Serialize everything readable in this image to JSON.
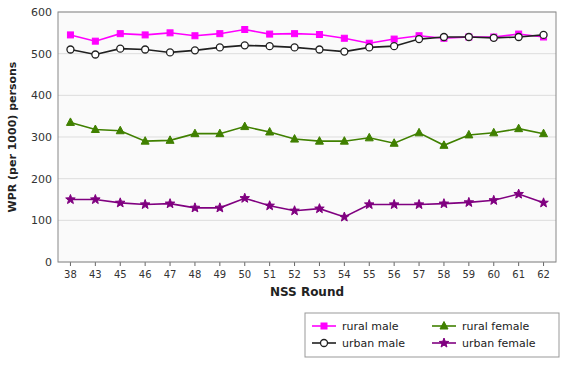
{
  "chart_data": {
    "type": "line",
    "xlabel": "NSS Round",
    "ylabel": "WPR (per 1000) persons",
    "categories": [
      "38",
      "43",
      "45",
      "46",
      "47",
      "48",
      "49",
      "50",
      "51",
      "52",
      "53",
      "54",
      "55",
      "56",
      "57",
      "58",
      "59",
      "60",
      "61",
      "62"
    ],
    "series": [
      {
        "name": "rural male",
        "color": "#ff00ff",
        "marker": "square",
        "values": [
          545,
          530,
          548,
          545,
          550,
          543,
          548,
          558,
          547,
          548,
          546,
          537,
          525,
          535,
          543,
          537,
          540,
          540,
          547,
          540
        ]
      },
      {
        "name": "rural female",
        "color": "#408000",
        "marker": "triangle",
        "values": [
          335,
          318,
          315,
          290,
          292,
          308,
          308,
          325,
          312,
          295,
          290,
          290,
          298,
          285,
          310,
          280,
          305,
          310,
          320,
          308
        ]
      },
      {
        "name": "urban male",
        "color": "#202020",
        "marker": "circle",
        "values": [
          510,
          498,
          512,
          510,
          503,
          508,
          515,
          520,
          518,
          515,
          510,
          505,
          515,
          518,
          535,
          540,
          540,
          538,
          540,
          545
        ]
      },
      {
        "name": "urban female",
        "color": "#800080",
        "marker": "star",
        "values": [
          150,
          150,
          142,
          138,
          140,
          130,
          130,
          153,
          135,
          123,
          128,
          108,
          138,
          138,
          138,
          140,
          143,
          148,
          163,
          142
        ]
      }
    ],
    "ylim": [
      0,
      600
    ],
    "yticks": [
      0,
      100,
      200,
      300,
      400,
      500,
      600
    ],
    "grid": true,
    "legend": "lower right"
  }
}
